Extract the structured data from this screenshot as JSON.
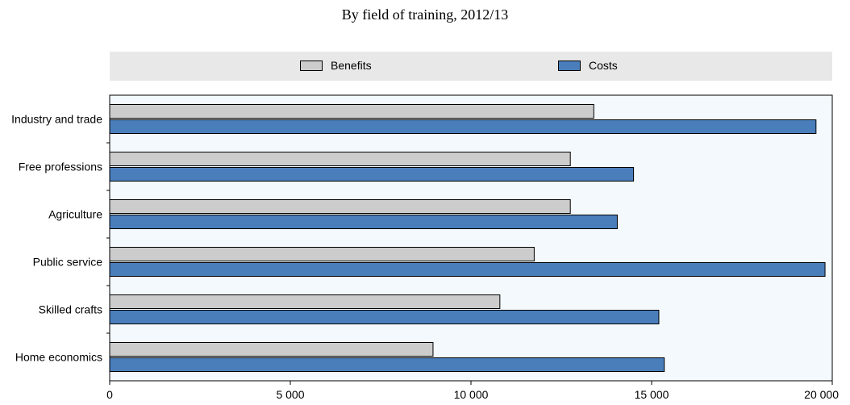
{
  "chart_data": {
    "type": "bar",
    "orientation": "horizontal",
    "title": "",
    "subtitle": "By field of training, 2012/13",
    "categories": [
      "Industry and trade",
      "Free professions",
      "Agriculture",
      "Public service",
      "Skilled crafts",
      "Home economics"
    ],
    "series": [
      {
        "name": "Benefits",
        "color": "#cccccc",
        "values": [
          13400,
          12750,
          12750,
          11750,
          10800,
          8950
        ]
      },
      {
        "name": "Costs",
        "color": "#4a7ebb",
        "values": [
          19550,
          14500,
          14050,
          19800,
          15200,
          15350
        ]
      }
    ],
    "xlim": [
      0,
      20000
    ],
    "xticks": [
      0,
      5000,
      10000,
      15000,
      20000
    ],
    "xtick_labels": [
      "0",
      "5 000",
      "10 000",
      "15 000",
      "20 000"
    ],
    "xlabel": "",
    "ylabel": "",
    "legend_position": "top",
    "grid": false,
    "plot_background": "#f3f9fd"
  }
}
